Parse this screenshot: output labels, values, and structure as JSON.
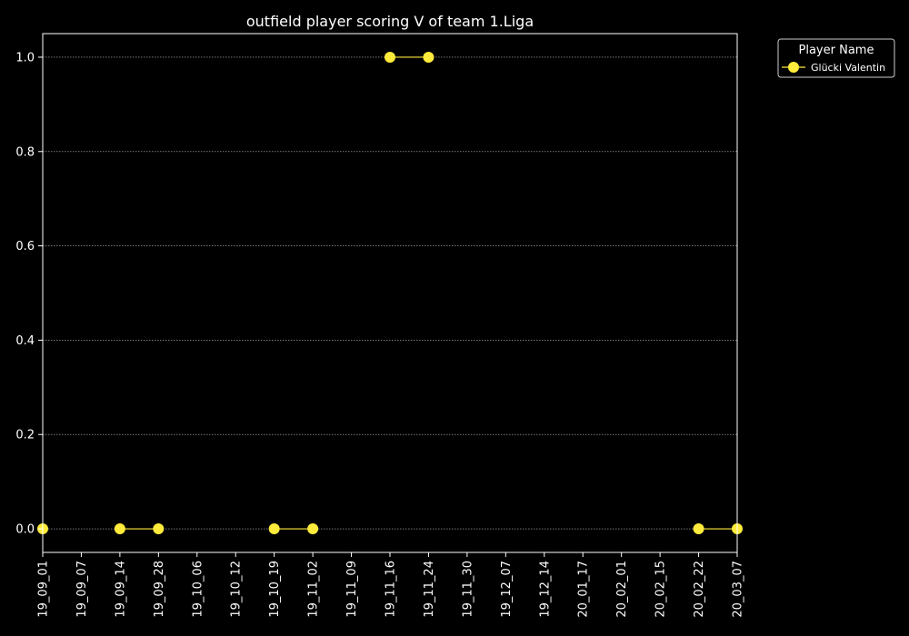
{
  "chart_data": {
    "type": "line",
    "title": "outfield player scoring V of team 1.Liga",
    "xlabel": "",
    "ylabel": "",
    "categories": [
      "19_09_01",
      "19_09_07",
      "19_09_14",
      "19_09_28",
      "19_10_06",
      "19_10_12",
      "19_10_19",
      "19_11_02",
      "19_11_09",
      "19_11_16",
      "19_11_24",
      "19_11_30",
      "19_12_07",
      "19_12_14",
      "20_01_17",
      "20_02_01",
      "20_02_15",
      "20_02_22",
      "20_03_07"
    ],
    "ylim": [
      -0.05,
      1.05
    ],
    "yticks": [
      0.0,
      0.2,
      0.4,
      0.6,
      0.8,
      1.0
    ],
    "ytick_labels": [
      "0.0",
      "0.2",
      "0.4",
      "0.6",
      "0.8",
      "1.0"
    ],
    "grid": true,
    "legend": {
      "title": "Player Name",
      "placement": "outside-top-right"
    },
    "series": [
      {
        "name": "Glücki Valentin",
        "color": "#ffeb3b",
        "values": [
          0,
          null,
          0,
          0,
          null,
          null,
          0,
          0,
          null,
          1,
          1,
          null,
          null,
          null,
          null,
          null,
          null,
          0,
          0
        ]
      }
    ]
  }
}
